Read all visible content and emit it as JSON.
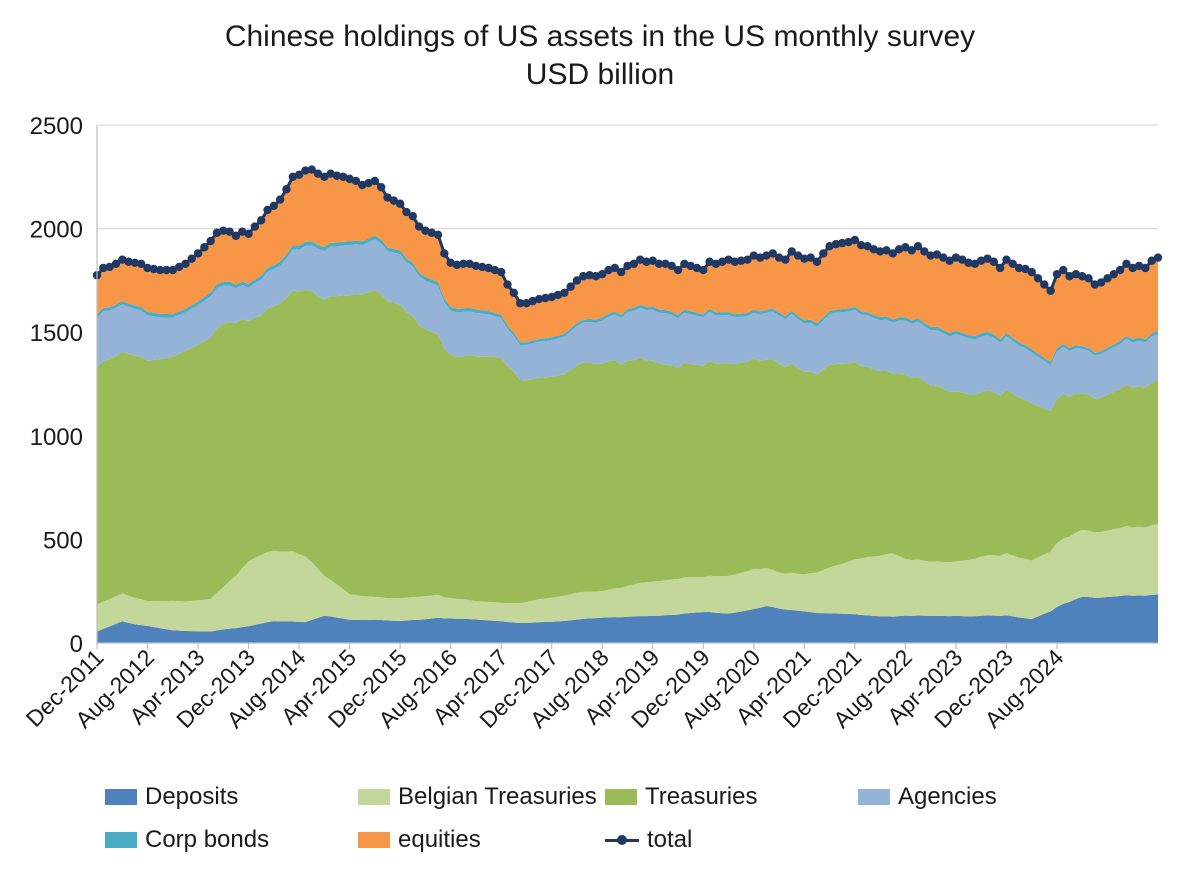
{
  "chart_data": {
    "type": "area",
    "title": "Chinese holdings of US assets in the US monthly survey",
    "subtitle": "USD billion",
    "ylim": [
      0,
      2500
    ],
    "yticks": [
      0,
      500,
      1000,
      1500,
      2000,
      2500
    ],
    "x_start": "Dec-2011",
    "x_tick_labels": [
      "Dec-2011",
      "Aug-2012",
      "Apr-2013",
      "Dec-2013",
      "Aug-2014",
      "Apr-2015",
      "Dec-2015",
      "Aug-2016",
      "Apr-2017",
      "Dec-2017",
      "Aug-2018",
      "Apr-2019",
      "Dec-2019",
      "Aug-2020",
      "Apr-2021",
      "Dec-2021",
      "Aug-2022",
      "Apr-2023",
      "Dec-2023",
      "Aug-2024"
    ],
    "grid": "horizontal",
    "legend_position": "bottom",
    "stacked_series": [
      {
        "name": "Deposits",
        "color": "#4F81BD",
        "anchors": [
          [
            0,
            55
          ],
          [
            4,
            105
          ],
          [
            6,
            90
          ],
          [
            12,
            65
          ],
          [
            18,
            55
          ],
          [
            22,
            80
          ],
          [
            28,
            110
          ],
          [
            33,
            95
          ],
          [
            36,
            120
          ],
          [
            40,
            95
          ],
          [
            48,
            90
          ],
          [
            56,
            105
          ],
          [
            64,
            100
          ],
          [
            72,
            110
          ],
          [
            80,
            125
          ],
          [
            88,
            130
          ],
          [
            96,
            150
          ],
          [
            100,
            140
          ],
          [
            106,
            185
          ],
          [
            110,
            160
          ],
          [
            116,
            140
          ],
          [
            124,
            130
          ],
          [
            132,
            125
          ],
          [
            138,
            120
          ],
          [
            144,
            125
          ],
          [
            148,
            110
          ],
          [
            152,
            175
          ],
          [
            156,
            235
          ]
        ]
      },
      {
        "name": "Belgian Treasuries",
        "color": "#C4D79B",
        "anchors": [
          [
            0,
            130
          ],
          [
            4,
            135
          ],
          [
            8,
            120
          ],
          [
            12,
            150
          ],
          [
            18,
            155
          ],
          [
            20,
            210
          ],
          [
            24,
            350
          ],
          [
            28,
            355
          ],
          [
            31,
            330
          ],
          [
            33,
            300
          ],
          [
            36,
            175
          ],
          [
            40,
            105
          ],
          [
            44,
            90
          ],
          [
            52,
            95
          ],
          [
            60,
            80
          ],
          [
            64,
            85
          ],
          [
            70,
            120
          ],
          [
            76,
            135
          ],
          [
            80,
            130
          ],
          [
            86,
            160
          ],
          [
            92,
            175
          ],
          [
            96,
            170
          ],
          [
            100,
            180
          ],
          [
            104,
            200
          ],
          [
            108,
            180
          ],
          [
            112,
            180
          ],
          [
            118,
            235
          ],
          [
            122,
            280
          ],
          [
            126,
            310
          ],
          [
            128,
            265
          ],
          [
            132,
            250
          ],
          [
            136,
            245
          ],
          [
            140,
            265
          ],
          [
            144,
            280
          ],
          [
            148,
            270
          ],
          [
            152,
            310
          ],
          [
            156,
            340
          ]
        ]
      },
      {
        "name": "Treasuries",
        "color": "#9BBB59",
        "anchors": [
          [
            0,
            1150
          ],
          [
            5,
            1170
          ],
          [
            8,
            1160
          ],
          [
            14,
            1290
          ],
          [
            18,
            1250
          ],
          [
            22,
            1360
          ],
          [
            26,
            1230
          ],
          [
            30,
            1230
          ],
          [
            34,
            1210
          ],
          [
            38,
            1220
          ],
          [
            42,
            1230
          ],
          [
            48,
            1195
          ],
          [
            54,
            1045
          ],
          [
            58,
            1040
          ],
          [
            62,
            1100
          ],
          [
            66,
            1160
          ],
          [
            70,
            1150
          ],
          [
            76,
            1140
          ],
          [
            82,
            1110
          ],
          [
            88,
            1060
          ],
          [
            94,
            1030
          ],
          [
            100,
            1015
          ],
          [
            104,
            1050
          ],
          [
            108,
            1045
          ],
          [
            112,
            985
          ],
          [
            118,
            940
          ],
          [
            124,
            900
          ],
          [
            130,
            840
          ],
          [
            136,
            765
          ],
          [
            140,
            735
          ],
          [
            146,
            735
          ],
          [
            152,
            700
          ],
          [
            156,
            695
          ]
        ]
      },
      {
        "name": "Agencies",
        "color": "#95B3D7",
        "anchors": [
          [
            0,
            240
          ],
          [
            6,
            225
          ],
          [
            12,
            200
          ],
          [
            18,
            195
          ],
          [
            24,
            180
          ],
          [
            28,
            185
          ],
          [
            32,
            195
          ],
          [
            36,
            215
          ],
          [
            42,
            200
          ],
          [
            48,
            205
          ],
          [
            52,
            200
          ],
          [
            56,
            190
          ],
          [
            60,
            190
          ],
          [
            66,
            180
          ],
          [
            72,
            190
          ],
          [
            78,
            200
          ],
          [
            84,
            235
          ],
          [
            90,
            250
          ],
          [
            96,
            235
          ],
          [
            102,
            225
          ],
          [
            108,
            240
          ],
          [
            114,
            235
          ],
          [
            120,
            245
          ],
          [
            126,
            250
          ],
          [
            130,
            255
          ],
          [
            136,
            255
          ],
          [
            142,
            245
          ],
          [
            148,
            235
          ],
          [
            152,
            230
          ],
          [
            156,
            225
          ]
        ]
      },
      {
        "name": "Corp bonds",
        "color": "#4BACC6",
        "anchors": [
          [
            0,
            15
          ],
          [
            20,
            20
          ],
          [
            30,
            20
          ],
          [
            40,
            15
          ],
          [
            60,
            15
          ],
          [
            80,
            15
          ],
          [
            100,
            15
          ],
          [
            120,
            15
          ],
          [
            140,
            15
          ],
          [
            156,
            15
          ]
        ]
      },
      {
        "name": "equities",
        "color": "#F79646",
        "anchors": [
          [
            0,
            190
          ],
          [
            6,
            205
          ],
          [
            12,
            225
          ],
          [
            18,
            245
          ],
          [
            24,
            270
          ],
          [
            28,
            300
          ],
          [
            32,
            330
          ],
          [
            36,
            310
          ],
          [
            42,
            230
          ],
          [
            48,
            190
          ],
          [
            54,
            190
          ],
          [
            60,
            190
          ],
          [
            66,
            200
          ],
          [
            72,
            210
          ],
          [
            78,
            215
          ],
          [
            84,
            210
          ],
          [
            90,
            225
          ],
          [
            96,
            215
          ],
          [
            100,
            250
          ],
          [
            104,
            270
          ],
          [
            108,
            275
          ],
          [
            112,
            300
          ],
          [
            118,
            310
          ],
          [
            124,
            320
          ],
          [
            130,
            330
          ],
          [
            136,
            330
          ],
          [
            140,
            325
          ],
          [
            144,
            330
          ],
          [
            148,
            355
          ],
          [
            152,
            360
          ],
          [
            156,
            355
          ]
        ]
      }
    ],
    "line_series": {
      "name": "total",
      "color": "#1F3864",
      "anchors": [
        [
          0,
          1775
        ],
        [
          1,
          1810
        ],
        [
          2,
          1815
        ],
        [
          3,
          1830
        ],
        [
          4,
          1850
        ],
        [
          5,
          1840
        ],
        [
          6,
          1835
        ],
        [
          7,
          1830
        ],
        [
          8,
          1810
        ],
        [
          10,
          1800
        ],
        [
          12,
          1800
        ],
        [
          14,
          1830
        ],
        [
          16,
          1880
        ],
        [
          18,
          1940
        ],
        [
          19,
          1980
        ],
        [
          20,
          1990
        ],
        [
          21,
          1985
        ],
        [
          22,
          1965
        ],
        [
          23,
          1985
        ],
        [
          24,
          1975
        ],
        [
          25,
          2010
        ],
        [
          26,
          2040
        ],
        [
          27,
          2090
        ],
        [
          28,
          2110
        ],
        [
          29,
          2140
        ],
        [
          30,
          2190
        ],
        [
          31,
          2250
        ],
        [
          32,
          2260
        ],
        [
          33,
          2280
        ],
        [
          34,
          2285
        ],
        [
          35,
          2265
        ],
        [
          36,
          2250
        ],
        [
          37,
          2265
        ],
        [
          38,
          2255
        ],
        [
          39,
          2250
        ],
        [
          40,
          2240
        ],
        [
          41,
          2230
        ],
        [
          42,
          2210
        ],
        [
          43,
          2220
        ],
        [
          44,
          2230
        ],
        [
          45,
          2200
        ],
        [
          46,
          2150
        ],
        [
          47,
          2135
        ],
        [
          48,
          2120
        ],
        [
          49,
          2080
        ],
        [
          50,
          2060
        ],
        [
          51,
          2010
        ],
        [
          52,
          1990
        ],
        [
          53,
          1980
        ],
        [
          54,
          1970
        ],
        [
          55,
          1880
        ],
        [
          56,
          1835
        ],
        [
          57,
          1825
        ],
        [
          58,
          1830
        ],
        [
          59,
          1830
        ],
        [
          60,
          1820
        ],
        [
          61,
          1815
        ],
        [
          62,
          1810
        ],
        [
          63,
          1800
        ],
        [
          64,
          1790
        ],
        [
          65,
          1730
        ],
        [
          66,
          1690
        ],
        [
          67,
          1640
        ],
        [
          68,
          1640
        ],
        [
          69,
          1650
        ],
        [
          70,
          1660
        ],
        [
          71,
          1665
        ],
        [
          72,
          1670
        ],
        [
          73,
          1680
        ],
        [
          74,
          1690
        ],
        [
          75,
          1720
        ],
        [
          76,
          1750
        ],
        [
          77,
          1770
        ],
        [
          78,
          1775
        ],
        [
          79,
          1770
        ],
        [
          80,
          1780
        ],
        [
          81,
          1800
        ],
        [
          82,
          1810
        ],
        [
          83,
          1790
        ],
        [
          84,
          1820
        ],
        [
          85,
          1830
        ],
        [
          86,
          1850
        ],
        [
          87,
          1840
        ],
        [
          88,
          1845
        ],
        [
          89,
          1830
        ],
        [
          90,
          1830
        ],
        [
          91,
          1820
        ],
        [
          92,
          1800
        ],
        [
          93,
          1830
        ],
        [
          94,
          1820
        ],
        [
          95,
          1810
        ],
        [
          96,
          1800
        ],
        [
          97,
          1840
        ],
        [
          98,
          1830
        ],
        [
          99,
          1840
        ],
        [
          100,
          1850
        ],
        [
          101,
          1840
        ],
        [
          102,
          1845
        ],
        [
          103,
          1850
        ],
        [
          104,
          1870
        ],
        [
          105,
          1860
        ],
        [
          106,
          1870
        ],
        [
          107,
          1880
        ],
        [
          108,
          1860
        ],
        [
          109,
          1850
        ],
        [
          110,
          1890
        ],
        [
          111,
          1870
        ],
        [
          112,
          1855
        ],
        [
          113,
          1860
        ],
        [
          114,
          1840
        ],
        [
          115,
          1880
        ],
        [
          116,
          1915
        ],
        [
          117,
          1925
        ],
        [
          118,
          1930
        ],
        [
          119,
          1935
        ],
        [
          120,
          1945
        ],
        [
          121,
          1920
        ],
        [
          122,
          1915
        ],
        [
          123,
          1900
        ],
        [
          124,
          1890
        ],
        [
          125,
          1895
        ],
        [
          126,
          1880
        ],
        [
          127,
          1900
        ],
        [
          128,
          1910
        ],
        [
          129,
          1895
        ],
        [
          130,
          1915
        ],
        [
          131,
          1890
        ],
        [
          132,
          1870
        ],
        [
          133,
          1875
        ],
        [
          134,
          1860
        ],
        [
          135,
          1845
        ],
        [
          136,
          1860
        ],
        [
          137,
          1850
        ],
        [
          138,
          1835
        ],
        [
          139,
          1830
        ],
        [
          140,
          1845
        ],
        [
          141,
          1855
        ],
        [
          142,
          1840
        ],
        [
          143,
          1810
        ],
        [
          144,
          1850
        ],
        [
          145,
          1830
        ],
        [
          146,
          1810
        ],
        [
          147,
          1805
        ],
        [
          148,
          1790
        ],
        [
          149,
          1760
        ],
        [
          150,
          1730
        ],
        [
          151,
          1700
        ],
        [
          152,
          1780
        ],
        [
          153,
          1800
        ],
        [
          154,
          1770
        ],
        [
          155,
          1780
        ],
        [
          156,
          1770
        ],
        [
          157,
          1760
        ],
        [
          158,
          1730
        ],
        [
          159,
          1740
        ],
        [
          160,
          1760
        ],
        [
          161,
          1780
        ],
        [
          162,
          1800
        ],
        [
          163,
          1830
        ],
        [
          164,
          1810
        ],
        [
          165,
          1820
        ],
        [
          166,
          1810
        ],
        [
          167,
          1845
        ],
        [
          168,
          1860
        ]
      ]
    },
    "n_points": 169
  }
}
